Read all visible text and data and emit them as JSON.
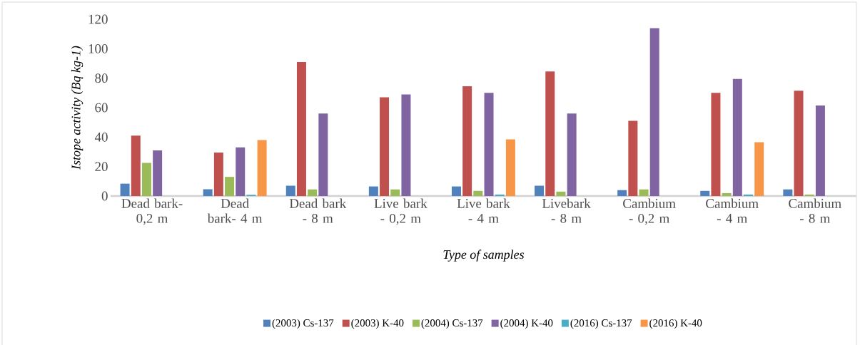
{
  "chart_data": {
    "type": "bar",
    "xlabel": "Type of samples",
    "ylabel": "Istope activity (Bq kg-1)",
    "categories": [
      "Dead bark- 0,2 m",
      "Dead bark- 4 m",
      "Dead bark - 8 m",
      "Live bark - 0,2 m",
      "Live bark - 4 m",
      "Livebark - 8 m",
      "Cambium - 0,2 m",
      "Cambium - 4 m",
      "Cambium - 8 m"
    ],
    "series": [
      {
        "name": "(2003) Cs-137",
        "color": "#4f81bd",
        "values": [
          8.4,
          4.6,
          7,
          6.5,
          6.5,
          7,
          4,
          3.5,
          4.5
        ]
      },
      {
        "name": "(2003) K-40",
        "color": "#c0504d",
        "values": [
          41,
          29.5,
          91,
          67,
          74.5,
          84.5,
          51,
          70,
          71.5
        ]
      },
      {
        "name": "(2004) Cs-137",
        "color": "#9bbb59",
        "values": [
          22.5,
          13,
          4.5,
          4.5,
          3.5,
          3,
          4.5,
          2,
          1
        ]
      },
      {
        "name": "(2004) K-40",
        "color": "#8064a2",
        "values": [
          31,
          33,
          56,
          69,
          70,
          56,
          114,
          79.5,
          61.5
        ]
      },
      {
        "name": "(2016) Cs-137",
        "color": "#4bacc6",
        "values": [
          null,
          0.8,
          null,
          null,
          1,
          null,
          null,
          1,
          null
        ]
      },
      {
        "name": "(2016) K-40",
        "color": "#f79646",
        "values": [
          null,
          38,
          null,
          null,
          38.5,
          null,
          null,
          36.5,
          null
        ]
      }
    ],
    "ylim": [
      0,
      120
    ],
    "yticks": [
      0,
      20,
      40,
      60,
      80,
      100,
      120
    ],
    "grid": false,
    "legend": "bottom"
  }
}
